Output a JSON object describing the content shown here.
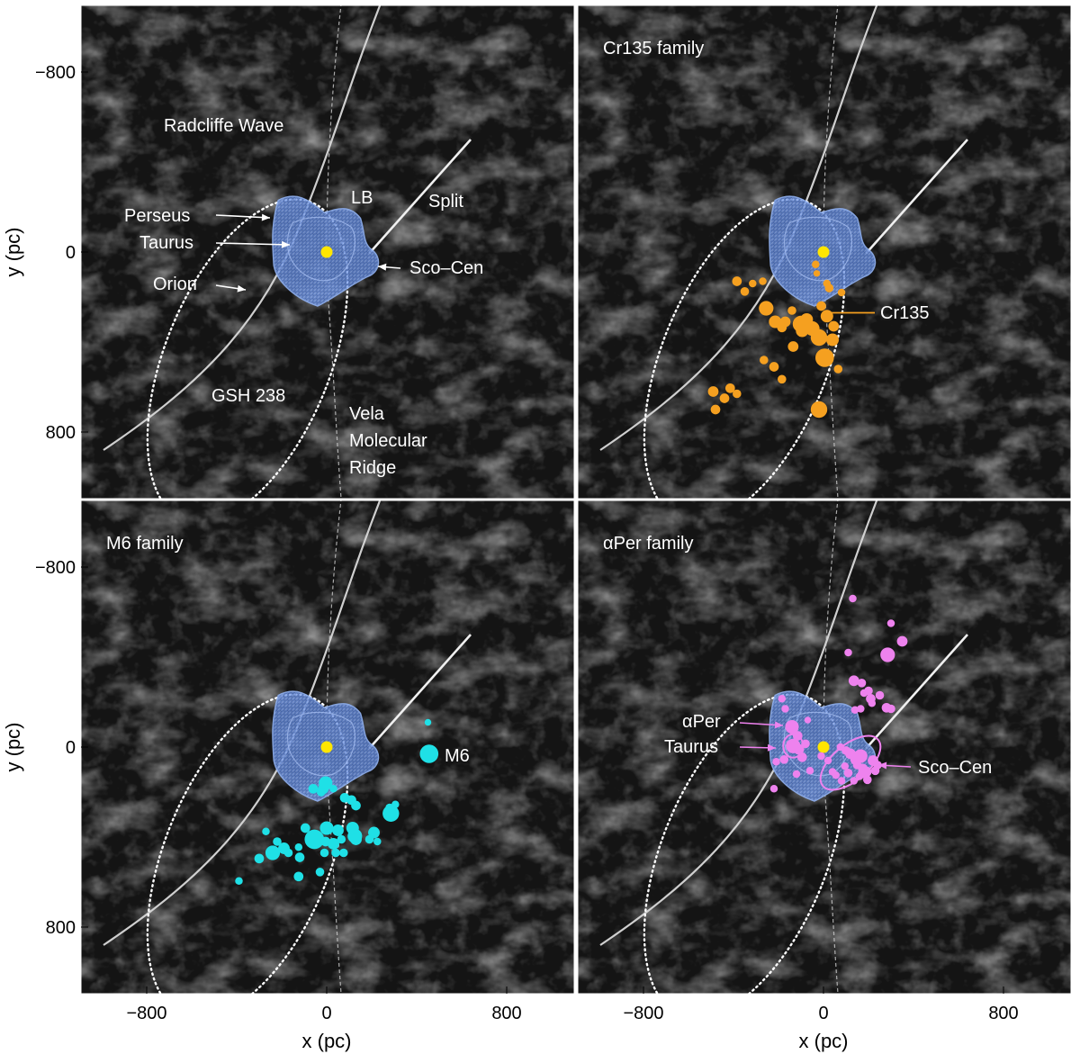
{
  "colors": {
    "background_dust": "#141414",
    "radcliffe_wave": "#d9d9d9",
    "split": "#f0f0f0",
    "local_bubble": "#5b82d6",
    "sun": "#ffe600",
    "cr135": "#f5a020",
    "m6": "#1fe0e6",
    "aper": "#ee82ee",
    "annotation_text": "#ffffff"
  },
  "chart_data": {
    "type": "scatter",
    "xlabel": "x (pc)",
    "ylabel": "y (pc)",
    "xlim": [
      -1100,
      1100
    ],
    "ylim": [
      -1100,
      1100
    ],
    "xticks": [
      -800,
      0,
      800
    ],
    "yticks": [
      -800,
      0,
      800
    ],
    "xtick_labels": [
      "−800",
      "0",
      "800"
    ],
    "ytick_labels": [
      "800",
      "0",
      "−800"
    ],
    "grid": false,
    "panels": [
      {
        "title": "",
        "annotations": {
          "radcliffe": "Radcliffe Wave",
          "lb": "LB",
          "split": "Split",
          "perseus": "Perseus",
          "taurus": "Taurus",
          "orion": "Orion",
          "scocen": "Sco–Cen",
          "gsh": "GSH 238",
          "vela1": "Vela",
          "vela2": "Molecular",
          "vela3": "Ridge"
        },
        "points": []
      },
      {
        "title": "Cr135 family",
        "annotations": {
          "cluster": "Cr135"
        },
        "family": "cr135",
        "points": [
          [
            -385,
            -130,
            7
          ],
          [
            -350,
            -175,
            6
          ],
          [
            -315,
            -140,
            5
          ],
          [
            -270,
            -130,
            5
          ],
          [
            -255,
            -250,
            12
          ],
          [
            -215,
            -310,
            10
          ],
          [
            -170,
            -310,
            8
          ],
          [
            -140,
            -260,
            6
          ],
          [
            -100,
            -320,
            14
          ],
          [
            -75,
            -300,
            10
          ],
          [
            -50,
            -340,
            12
          ],
          [
            -20,
            -380,
            14
          ],
          [
            15,
            -285,
            10
          ],
          [
            -10,
            -240,
            7
          ],
          [
            40,
            -390,
            10
          ],
          [
            45,
            -330,
            8
          ],
          [
            5,
            -470,
            16
          ],
          [
            -95,
            -350,
            10
          ],
          [
            -135,
            -420,
            8
          ],
          [
            -185,
            -335,
            7
          ],
          [
            -220,
            -510,
            7
          ],
          [
            -185,
            -565,
            6
          ],
          [
            -265,
            -480,
            6
          ],
          [
            -490,
            -620,
            8
          ],
          [
            -440,
            -650,
            7
          ],
          [
            -415,
            -605,
            7
          ],
          [
            -480,
            -700,
            7
          ],
          [
            -385,
            -630,
            6
          ],
          [
            -20,
            -700,
            14
          ],
          [
            -35,
            -55,
            5
          ],
          [
            -30,
            -95,
            4
          ],
          [
            15,
            -140,
            5
          ],
          [
            25,
            -160,
            6
          ],
          [
            65,
            -520,
            6
          ],
          [
            80,
            -180,
            5
          ]
        ]
      },
      {
        "title": "M6 family",
        "annotations": {
          "cluster": "M6"
        },
        "family": "m6",
        "points": [
          [
            450,
            110,
            4
          ],
          [
            455,
            -30,
            16
          ],
          [
            -60,
            -185,
            7
          ],
          [
            -15,
            -185,
            8
          ],
          [
            -5,
            -160,
            11
          ],
          [
            30,
            -185,
            5
          ],
          [
            -25,
            -200,
            6
          ],
          [
            80,
            -225,
            7
          ],
          [
            110,
            -235,
            7
          ],
          [
            130,
            -260,
            7
          ],
          [
            280,
            -270,
            6
          ],
          [
            305,
            -255,
            5
          ],
          [
            285,
            -295,
            14
          ],
          [
            115,
            -360,
            10
          ],
          [
            125,
            -395,
            12
          ],
          [
            50,
            -370,
            9
          ],
          [
            0,
            -360,
            11
          ],
          [
            -55,
            -410,
            17
          ],
          [
            -95,
            -360,
            7
          ],
          [
            -5,
            -420,
            7
          ],
          [
            30,
            -430,
            9
          ],
          [
            65,
            -410,
            6
          ],
          [
            75,
            -470,
            6
          ],
          [
            130,
            -410,
            9
          ],
          [
            210,
            -380,
            9
          ],
          [
            190,
            -410,
            6
          ],
          [
            225,
            -420,
            5
          ],
          [
            -190,
            -450,
            9
          ],
          [
            -220,
            -420,
            6
          ],
          [
            -240,
            -470,
            12
          ],
          [
            -300,
            -495,
            7
          ],
          [
            -170,
            -470,
            6
          ],
          [
            -10,
            -470,
            6
          ],
          [
            40,
            -470,
            6
          ],
          [
            -120,
            -490,
            7
          ],
          [
            -125,
            -575,
            7
          ],
          [
            -30,
            -555,
            6
          ],
          [
            -390,
            -595,
            5
          ],
          [
            -270,
            -375,
            5
          ],
          [
            -125,
            -445,
            5
          ]
        ]
      },
      {
        "title": "αPer family",
        "annotations": {
          "aper": "αPer",
          "taurus": "Taurus",
          "scocen": "Sco–Cen"
        },
        "family": "aper",
        "points": [
          [
            130,
            660,
            5
          ],
          [
            300,
            550,
            5
          ],
          [
            350,
            470,
            8
          ],
          [
            285,
            410,
            12
          ],
          [
            110,
            420,
            5
          ],
          [
            135,
            295,
            8
          ],
          [
            170,
            285,
            6
          ],
          [
            180,
            240,
            5
          ],
          [
            200,
            250,
            6
          ],
          [
            210,
            215,
            7
          ],
          [
            250,
            230,
            6
          ],
          [
            215,
            195,
            5
          ],
          [
            280,
            175,
            7
          ],
          [
            300,
            170,
            6
          ],
          [
            140,
            165,
            5
          ],
          [
            165,
            170,
            5
          ],
          [
            -185,
            215,
            5
          ],
          [
            -170,
            170,
            5
          ],
          [
            -140,
            90,
            11
          ],
          [
            -115,
            50,
            7
          ],
          [
            -70,
            120,
            4
          ],
          [
            -80,
            15,
            6
          ],
          [
            -135,
            5,
            12
          ],
          [
            -110,
            -10,
            8
          ],
          [
            -175,
            -55,
            6
          ],
          [
            -210,
            -65,
            5
          ],
          [
            -95,
            -45,
            7
          ],
          [
            -120,
            -120,
            5
          ],
          [
            -220,
            -185,
            5
          ],
          [
            -60,
            -105,
            5
          ],
          [
            20,
            -60,
            5
          ],
          [
            40,
            -110,
            5
          ],
          [
            75,
            0,
            5
          ],
          [
            100,
            -15,
            6
          ],
          [
            120,
            -30,
            8
          ],
          [
            145,
            -55,
            9
          ],
          [
            150,
            -80,
            6
          ],
          [
            165,
            -40,
            11
          ],
          [
            175,
            -95,
            7
          ],
          [
            190,
            -110,
            8
          ],
          [
            220,
            -60,
            8
          ],
          [
            240,
            -80,
            6
          ],
          [
            110,
            -115,
            6
          ],
          [
            135,
            -150,
            5
          ],
          [
            160,
            -130,
            5
          ],
          [
            95,
            -85,
            5
          ],
          [
            195,
            -145,
            6
          ],
          [
            170,
            -120,
            6
          ],
          [
            -10,
            -40,
            5
          ],
          [
            55,
            -125,
            5
          ],
          [
            80,
            -150,
            5
          ],
          [
            230,
            -105,
            6
          ]
        ]
      }
    ]
  }
}
